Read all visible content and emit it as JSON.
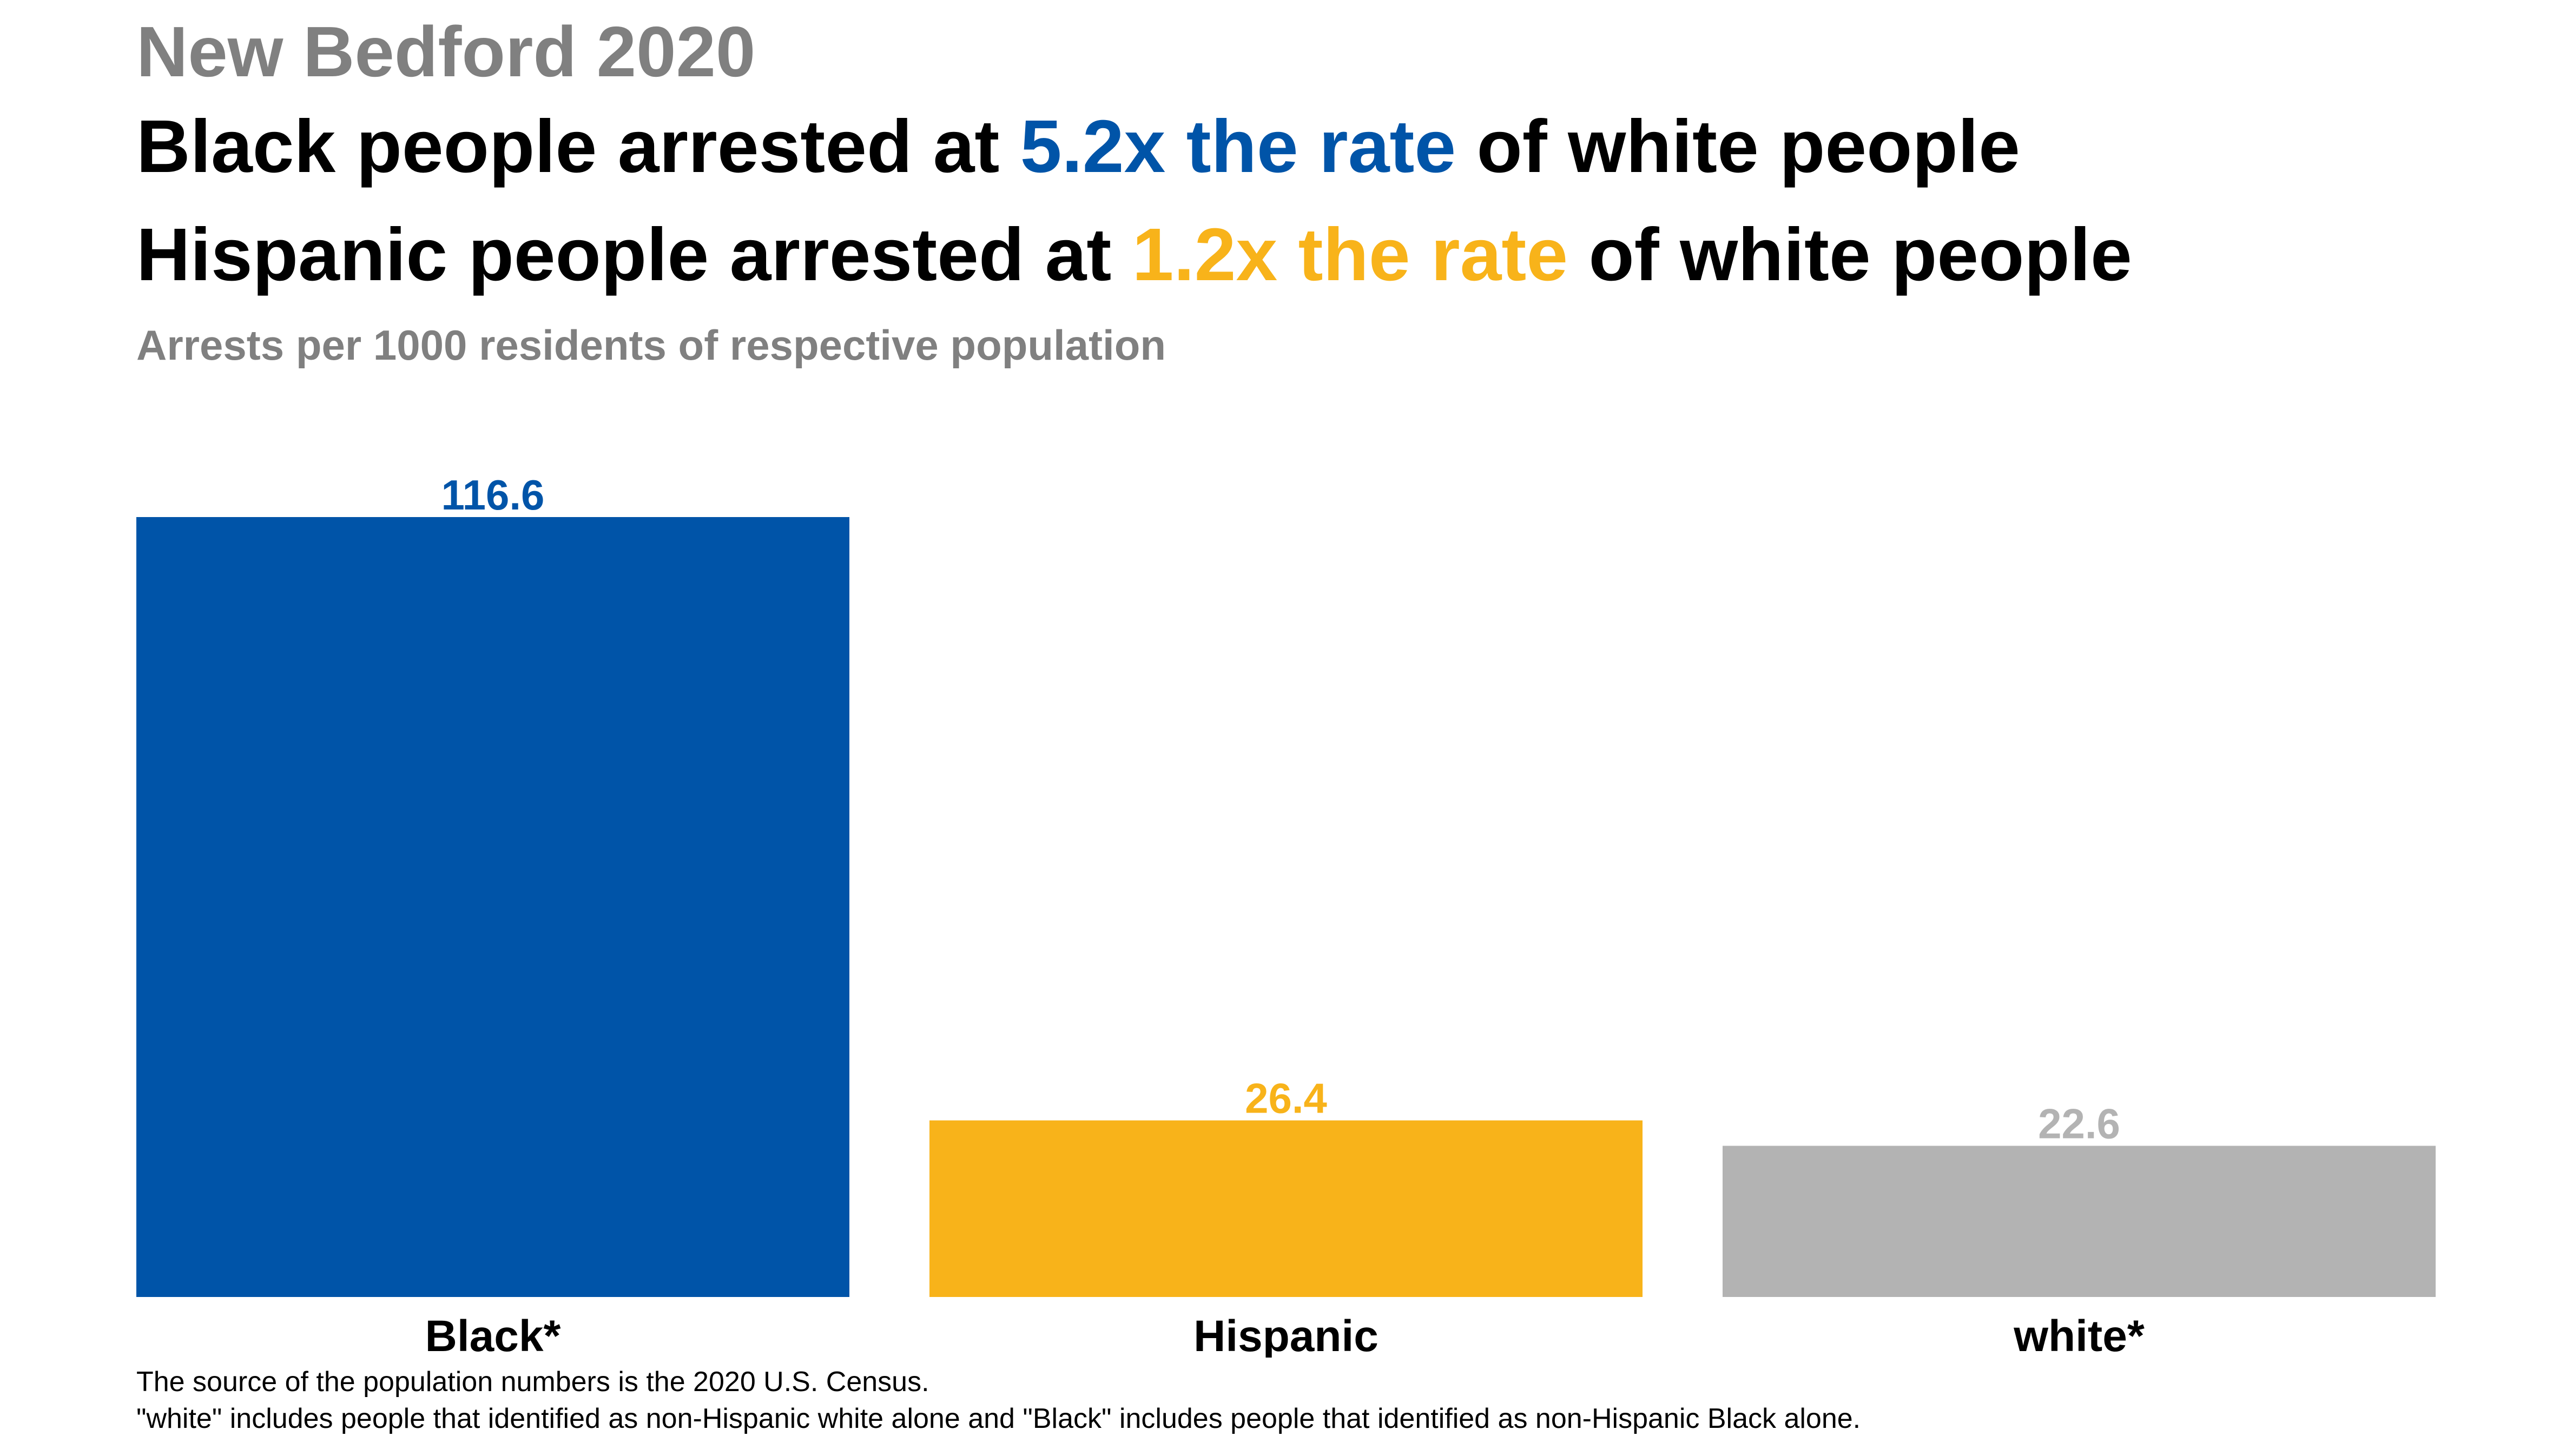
{
  "kicker": "New Bedford 2020",
  "headline_1": {
    "before": "Black people arrested at ",
    "highlight": "5.2x the rate",
    "after": " of white people"
  },
  "headline_2": {
    "before": "Hispanic people arrested at ",
    "highlight": "1.2x the rate",
    "after": " of white people"
  },
  "subtitle": "Arrests per 1000 residents of respective population",
  "footnotes": [
    "The source of the population numbers is the 2020 U.S. Census.",
    "\"white\" includes people that identified as non-Hispanic white alone and \"Black\" includes people that identified as non-Hispanic Black alone."
  ],
  "colors": {
    "black_bar": "#0054a8",
    "hispanic_bar": "#f8b31a",
    "white_bar": "#b3b3b3",
    "kicker_text": "#808080"
  },
  "chart_data": {
    "type": "bar",
    "categories": [
      "Black*",
      "Hispanic",
      "white*"
    ],
    "values": [
      116.6,
      26.4,
      22.6
    ],
    "value_labels": [
      "116.6",
      "26.4",
      "22.6"
    ],
    "bar_colors": [
      "#0054a8",
      "#f8b31a",
      "#b3b3b3"
    ],
    "title": "New Bedford 2020",
    "subtitle": "Arrests per 1000 residents of respective population",
    "xlabel": "",
    "ylabel": "",
    "ylim": [
      0,
      116.6
    ],
    "grid": false,
    "legend": "none"
  }
}
